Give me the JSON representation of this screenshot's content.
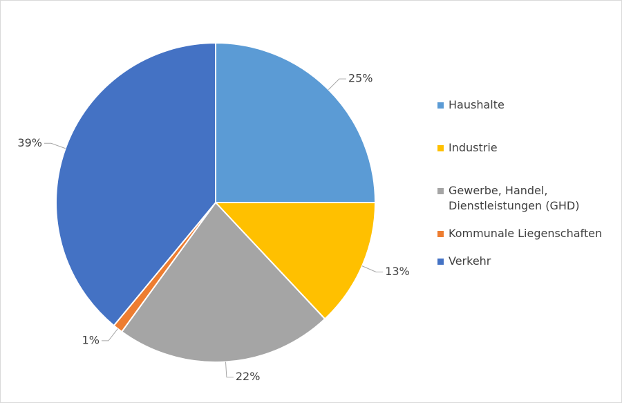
{
  "chart_data": {
    "type": "pie",
    "categories": [
      "Haushalte",
      "Industrie",
      "Gewerbe, Handel, Dienstleistungen (GHD)",
      "Kommunale Liegenschaften",
      "Verkehr"
    ],
    "values": [
      25,
      13,
      22,
      1,
      39
    ],
    "value_labels": [
      "25%",
      "13%",
      "22%",
      "1%",
      "39%"
    ],
    "colors": [
      "#5b9bd5",
      "#ffc000",
      "#a5a5a5",
      "#ed7d31",
      "#4472c4"
    ],
    "legend": "right"
  }
}
